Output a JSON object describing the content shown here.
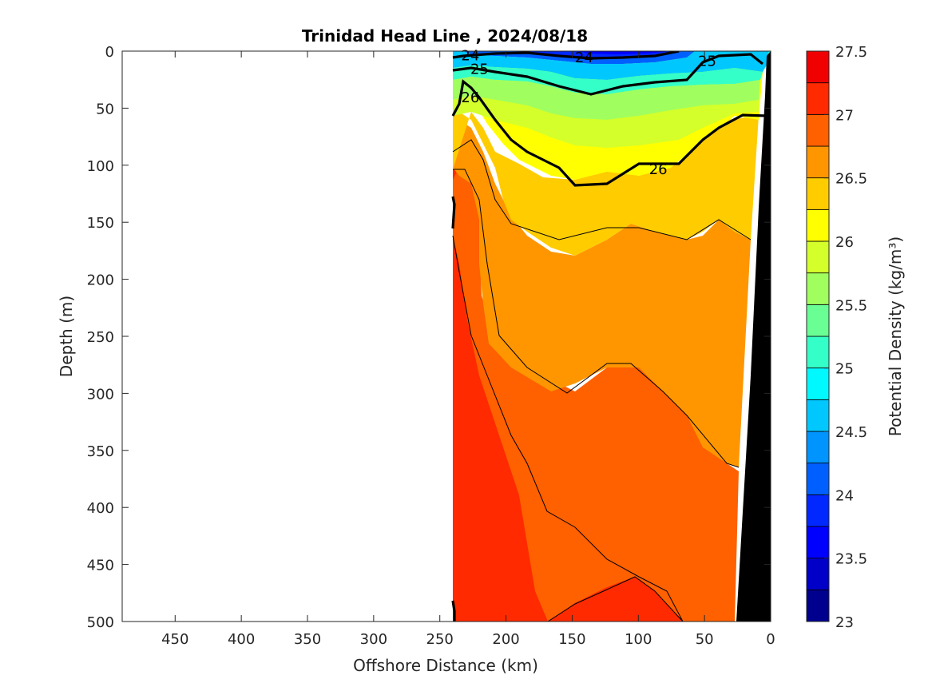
{
  "chart_data": {
    "type": "contour",
    "title": "Trinidad Head Line , 2024/08/18",
    "xlabel": "Offshore Distance (km)",
    "ylabel": "Depth (m)",
    "colorbar_label": "Potential Density (kg/m³)",
    "xlim": [
      490,
      0
    ],
    "ylim": [
      0,
      500
    ],
    "x_reversed": true,
    "y_reversed": true,
    "x_ticks": [
      450,
      400,
      350,
      300,
      250,
      200,
      150,
      100,
      50,
      0
    ],
    "y_ticks": [
      0,
      50,
      100,
      150,
      200,
      250,
      300,
      350,
      400,
      450,
      500
    ],
    "colorbar_ticks": [
      "23",
      "23.5",
      "24",
      "24.5",
      "25",
      "25.5",
      "26",
      "26.5",
      "27",
      "27.5"
    ],
    "colorbar_range": [
      23,
      27.5
    ],
    "data_x_range": [
      240,
      0
    ],
    "contour_labels": [
      {
        "text": "24",
        "x": 227,
        "y": 3
      },
      {
        "text": "24",
        "x": 141,
        "y": 5
      },
      {
        "text": "25",
        "x": 220,
        "y": 15
      },
      {
        "text": "25",
        "x": 48,
        "y": 8
      },
      {
        "text": "26",
        "x": 227,
        "y": 40
      },
      {
        "text": "26",
        "x": 85,
        "y": 103
      }
    ],
    "colormap": [
      {
        "level": 23.0,
        "color": "#00008f"
      },
      {
        "level": 23.25,
        "color": "#0000c8"
      },
      {
        "level": 23.5,
        "color": "#0000ff"
      },
      {
        "level": 23.75,
        "color": "#0028ff"
      },
      {
        "level": 24.0,
        "color": "#0060ff"
      },
      {
        "level": 24.25,
        "color": "#0094ff"
      },
      {
        "level": 24.5,
        "color": "#00c8ff"
      },
      {
        "level": 24.75,
        "color": "#00f8ff"
      },
      {
        "level": 25.0,
        "color": "#35ffc8"
      },
      {
        "level": 25.25,
        "color": "#6aff94"
      },
      {
        "level": 25.5,
        "color": "#a0ff5e"
      },
      {
        "level": 25.75,
        "color": "#d4ff2a"
      },
      {
        "level": 26.0,
        "color": "#ffff00"
      },
      {
        "level": 26.25,
        "color": "#ffcc00"
      },
      {
        "level": 26.5,
        "color": "#ff9600"
      },
      {
        "level": 26.75,
        "color": "#ff6000"
      },
      {
        "level": 27.0,
        "color": "#ff2a00"
      },
      {
        "level": 27.25,
        "color": "#f00000"
      },
      {
        "level": 27.5,
        "color": "#aa0000"
      }
    ],
    "bottom_color": "#000000"
  }
}
